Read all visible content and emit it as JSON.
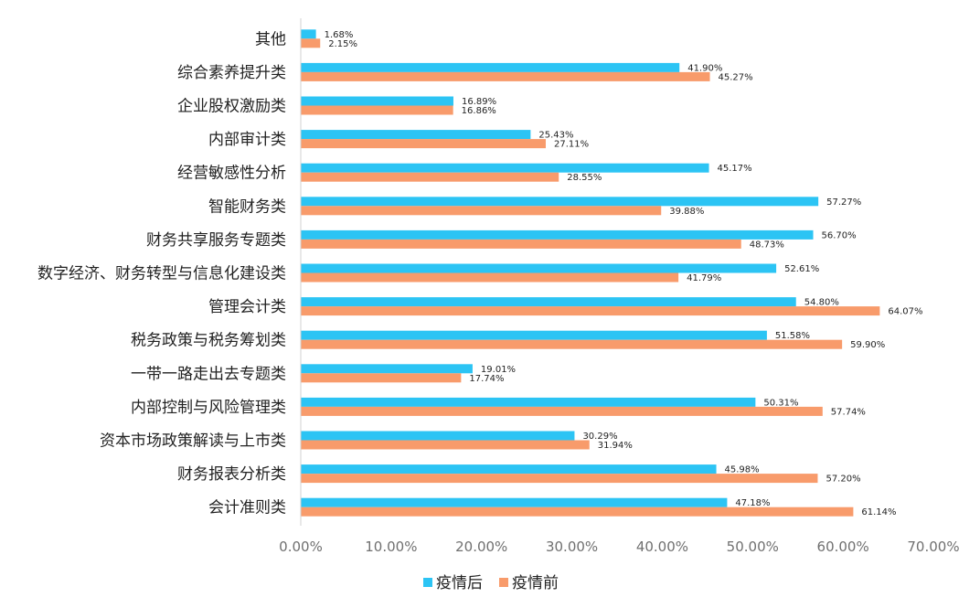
{
  "chart_data": {
    "type": "bar",
    "orientation": "horizontal",
    "title": "",
    "xlabel": "",
    "ylabel": "",
    "xlim": [
      0,
      70
    ],
    "x_ticks": [
      "0.00%",
      "10.00%",
      "20.00%",
      "30.00%",
      "40.00%",
      "50.00%",
      "60.00%",
      "70.00%"
    ],
    "x_tick_values": [
      0,
      10,
      20,
      30,
      40,
      50,
      60,
      70
    ],
    "grid": false,
    "legend_position": "bottom",
    "categories": [
      "其他",
      "综合素养提升类",
      "企业股权激励类",
      "内部审计类",
      "经营敏感性分析",
      "智能财务类",
      "财务共享服务专题类",
      "数字经济、财务转型与信息化建设类",
      "管理会计类",
      "税务政策与税务筹划类",
      "一带一路走出去专题类",
      "内部控制与风险管理类",
      "资本市场政策解读与上市类",
      "财务报表分析类",
      "会计准则类"
    ],
    "series": [
      {
        "name": "疫情后",
        "color": "#2CC4F4",
        "values": [
          1.68,
          41.9,
          16.89,
          25.43,
          45.17,
          57.27,
          56.7,
          52.61,
          54.8,
          51.58,
          19.01,
          50.31,
          30.29,
          45.98,
          47.18
        ],
        "labels": [
          "1.68%",
          "41.90%",
          "16.89%",
          "25.43%",
          "45.17%",
          "57.27%",
          "56.70%",
          "52.61%",
          "54.80%",
          "51.58%",
          "19.01%",
          "50.31%",
          "30.29%",
          "45.98%",
          "47.18%"
        ]
      },
      {
        "name": "疫情前",
        "color": "#F89B6B",
        "values": [
          2.15,
          45.27,
          16.86,
          27.11,
          28.55,
          39.88,
          48.73,
          41.79,
          64.07,
          59.9,
          17.74,
          57.74,
          31.94,
          57.2,
          61.14
        ],
        "labels": [
          "2.15%",
          "45.27%",
          "16.86%",
          "27.11%",
          "28.55%",
          "39.88%",
          "48.73%",
          "41.79%",
          "64.07%",
          "59.90%",
          "17.74%",
          "57.74%",
          "31.94%",
          "57.20%",
          "61.14%"
        ]
      }
    ]
  }
}
